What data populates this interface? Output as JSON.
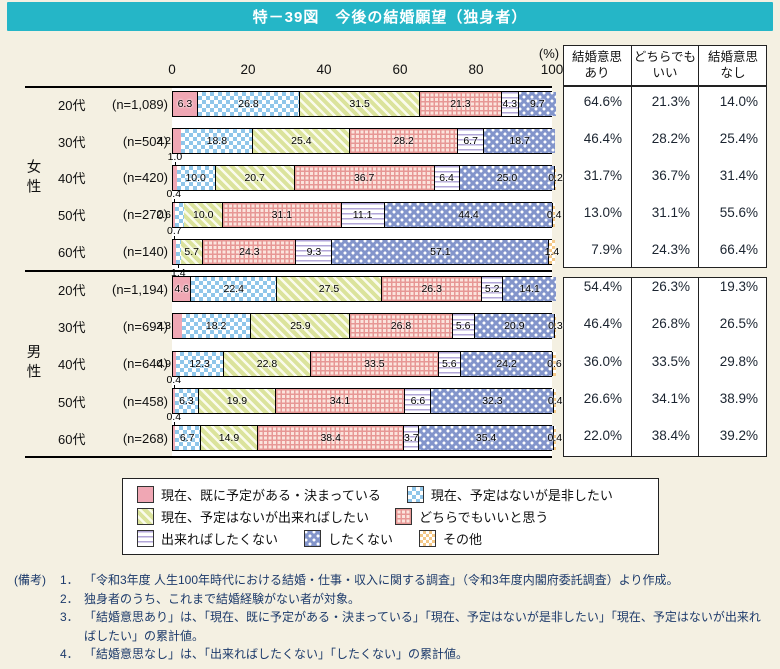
{
  "title": "特－39図　今後の結婚願望（独身者）",
  "colors": {
    "accent": "#25b6c7",
    "pagebg": "#f4f0e2",
    "navy": "#1c3a6b",
    "pink": "#f0a7b4",
    "bluechk": "#8fc6ea",
    "green": "#dbe39c",
    "redgrid": "#e79795",
    "redgridbg": "#fbe4dd",
    "wave": "#b2a6d8",
    "dotbg": "#8395cb",
    "orange": "#f5c988"
  },
  "axis": {
    "unit": "(%)",
    "ticks": [
      0,
      20,
      40,
      60,
      80,
      100
    ],
    "max": 100
  },
  "summary_table": {
    "headers": [
      {
        "line1": "結婚意思",
        "line2": "あり"
      },
      {
        "line1": "どちらでも",
        "line2": "いい"
      },
      {
        "line1": "結婚意思",
        "line2": "なし"
      }
    ]
  },
  "chart_data": {
    "type": "bar",
    "orientation": "horizontal-stacked",
    "unit": "%",
    "xlim": [
      0,
      100
    ],
    "categories": [
      "現在、既に予定がある・決まっている",
      "現在、予定はないが是非したい",
      "現在、予定はないが出来ればしたい",
      "どちらでもいいと思う",
      "出来ればしたくない",
      "したくない",
      "その他"
    ],
    "summary_columns": [
      "結婚意思あり",
      "どちらでもいい",
      "結婚意思なし"
    ],
    "groups": [
      {
        "label": "女性",
        "rows": [
          {
            "age": "20代",
            "n": "(n=1,089)",
            "segments": [
              {
                "c": 0,
                "v": 6.3
              },
              {
                "c": 1,
                "v": 26.8
              },
              {
                "c": 2,
                "v": 31.5
              },
              {
                "c": 3,
                "v": 21.3
              },
              {
                "c": 4,
                "v": 4.3
              },
              {
                "c": 5,
                "v": 9.7
              }
            ],
            "summary": [
              "64.6%",
              "21.3%",
              "14.0%"
            ]
          },
          {
            "age": "30代",
            "n": "(n=504)",
            "segments": [
              {
                "c": 0,
                "v": 2.2,
                "pos": "left"
              },
              {
                "c": 1,
                "v": 18.8
              },
              {
                "c": 2,
                "v": 25.4
              },
              {
                "c": 3,
                "v": 28.2
              },
              {
                "c": 4,
                "v": 6.7
              },
              {
                "c": 5,
                "v": 18.7
              }
            ],
            "summary": [
              "46.4%",
              "28.2%",
              "25.4%"
            ]
          },
          {
            "age": "40代",
            "n": "(n=420)",
            "segments": [
              {
                "c": 0,
                "v": 1.0,
                "pos": "above"
              },
              {
                "c": 1,
                "v": 10.0
              },
              {
                "c": 2,
                "v": 20.7
              },
              {
                "c": 3,
                "v": 36.7
              },
              {
                "c": 4,
                "v": 6.4
              },
              {
                "c": 5,
                "v": 25.0
              },
              {
                "c": 6,
                "v": 0.2
              }
            ],
            "summary": [
              "31.7%",
              "36.7%",
              "31.4%"
            ]
          },
          {
            "age": "50代",
            "n": "(n=270)",
            "segments": [
              {
                "c": 0,
                "v": 0.4,
                "pos": "above"
              },
              {
                "c": 1,
                "v": 2.6,
                "pos": "left"
              },
              {
                "c": 2,
                "v": 10.0
              },
              {
                "c": 3,
                "v": 31.1
              },
              {
                "c": 4,
                "v": 11.1
              },
              {
                "c": 5,
                "v": 44.4
              },
              {
                "c": 6,
                "v": 0.4
              }
            ],
            "summary": [
              "13.0%",
              "31.1%",
              "55.6%"
            ]
          },
          {
            "age": "60代",
            "n": "(n=140)",
            "segments": [
              {
                "c": 0,
                "v": 0.7,
                "pos": "above"
              },
              {
                "c": 1,
                "v": 1.4,
                "pos": "below"
              },
              {
                "c": 2,
                "v": 5.7
              },
              {
                "c": 3,
                "v": 24.3
              },
              {
                "c": 4,
                "v": 9.3
              },
              {
                "c": 5,
                "v": 57.1
              },
              {
                "c": 6,
                "v": 1.4
              }
            ],
            "summary": [
              "7.9%",
              "24.3%",
              "66.4%"
            ]
          }
        ]
      },
      {
        "label": "男性",
        "rows": [
          {
            "age": "20代",
            "n": "(n=1,194)",
            "segments": [
              {
                "c": 0,
                "v": 4.6
              },
              {
                "c": 1,
                "v": 22.4
              },
              {
                "c": 2,
                "v": 27.5
              },
              {
                "c": 3,
                "v": 26.3
              },
              {
                "c": 4,
                "v": 5.2
              },
              {
                "c": 5,
                "v": 14.1
              }
            ],
            "summary": [
              "54.4%",
              "26.3%",
              "19.3%"
            ]
          },
          {
            "age": "30代",
            "n": "(n=694)",
            "segments": [
              {
                "c": 0,
                "v": 2.3,
                "pos": "left"
              },
              {
                "c": 1,
                "v": 18.2
              },
              {
                "c": 2,
                "v": 25.9
              },
              {
                "c": 3,
                "v": 26.8
              },
              {
                "c": 4,
                "v": 5.6
              },
              {
                "c": 5,
                "v": 20.9
              },
              {
                "c": 6,
                "v": 0.3
              }
            ],
            "summary": [
              "46.4%",
              "26.8%",
              "26.5%"
            ]
          },
          {
            "age": "40代",
            "n": "(n=644)",
            "segments": [
              {
                "c": 0,
                "v": 0.9,
                "pos": "left"
              },
              {
                "c": 1,
                "v": 12.3
              },
              {
                "c": 2,
                "v": 22.8
              },
              {
                "c": 3,
                "v": 33.5
              },
              {
                "c": 4,
                "v": 5.6
              },
              {
                "c": 5,
                "v": 24.2
              },
              {
                "c": 6,
                "v": 0.6
              }
            ],
            "summary": [
              "36.0%",
              "33.5%",
              "29.8%"
            ]
          },
          {
            "age": "50代",
            "n": "(n=458)",
            "segments": [
              {
                "c": 0,
                "v": 0.4,
                "pos": "above"
              },
              {
                "c": 1,
                "v": 6.3
              },
              {
                "c": 2,
                "v": 19.9
              },
              {
                "c": 3,
                "v": 34.1
              },
              {
                "c": 4,
                "v": 6.6
              },
              {
                "c": 5,
                "v": 32.3
              },
              {
                "c": 6,
                "v": 0.4
              }
            ],
            "summary": [
              "26.6%",
              "34.1%",
              "38.9%"
            ]
          },
          {
            "age": "60代",
            "n": "(n=268)",
            "segments": [
              {
                "c": 0,
                "v": 0.4,
                "pos": "above"
              },
              {
                "c": 1,
                "v": 6.7
              },
              {
                "c": 2,
                "v": 14.9
              },
              {
                "c": 3,
                "v": 38.4
              },
              {
                "c": 4,
                "v": 3.7
              },
              {
                "c": 5,
                "v": 35.4
              },
              {
                "c": 6,
                "v": 0.4
              }
            ],
            "summary": [
              "22.0%",
              "38.4%",
              "39.2%"
            ]
          }
        ]
      }
    ]
  },
  "legend": {
    "rows": [
      [
        0,
        1
      ],
      [
        2,
        3
      ],
      [
        4,
        5,
        6
      ]
    ]
  },
  "notes": {
    "prefix": "(備考)",
    "items": [
      {
        "num": "1．",
        "text": "「令和3年度 人生100年時代における結婚・仕事・収入に関する調査」（令和3年度内閣府委託調査）より作成。"
      },
      {
        "num": "2．",
        "text": "独身者のうち、これまで結婚経験がない者が対象。"
      },
      {
        "num": "3．",
        "text": "「結婚意思あり」は、「現在、既に予定がある・決まっている」「現在、予定はないが是非したい」「現在、予定はないが出来ればしたい」の累計値。"
      },
      {
        "num": "4．",
        "text": "「結婚意思なし」は、「出来ればしたくない」「したくない」の累計値。"
      }
    ]
  }
}
